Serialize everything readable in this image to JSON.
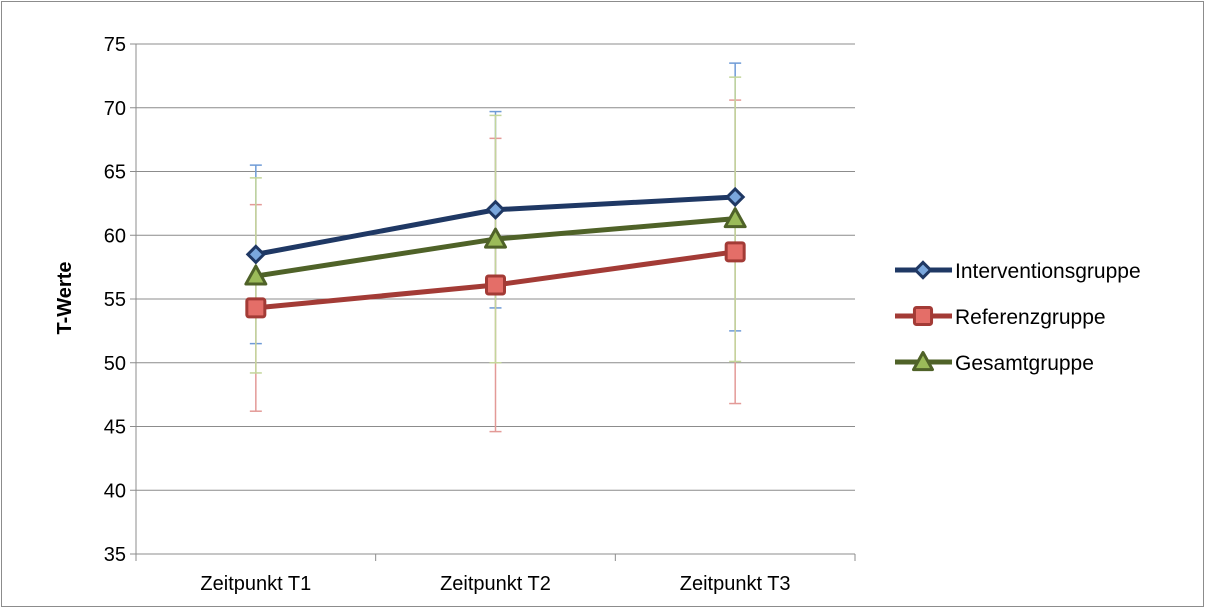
{
  "chart_data": {
    "type": "line",
    "title": "",
    "xlabel": "",
    "ylabel": "T-Werte",
    "categories": [
      "Zeitpunkt T1",
      "Zeitpunkt T2",
      "Zeitpunkt T3"
    ],
    "ylim": [
      35,
      75
    ],
    "yticks": [
      35,
      40,
      45,
      50,
      55,
      60,
      65,
      70,
      75
    ],
    "grid": true,
    "legend_position": "right",
    "error_bars": true,
    "series": [
      {
        "name": "Interventionsgruppe",
        "marker": "diamond",
        "color": "#1f3864",
        "error_color": "#6f9bd6",
        "values": [
          58.5,
          62.0,
          63.0
        ],
        "error_low": [
          51.5,
          54.3,
          52.5
        ],
        "error_high": [
          65.5,
          69.7,
          73.5
        ]
      },
      {
        "name": "Referenzgruppe",
        "marker": "square",
        "color": "#a33b36",
        "error_color": "#e39a97",
        "values": [
          54.3,
          56.1,
          58.7
        ],
        "error_low": [
          46.2,
          44.6,
          46.8
        ],
        "error_high": [
          62.4,
          67.6,
          70.6
        ]
      },
      {
        "name": "Gesamtgruppe",
        "marker": "triangle",
        "color": "#4f6228",
        "error_color": "#c3d69b",
        "values": [
          56.8,
          59.7,
          61.3
        ],
        "error_low": [
          49.2,
          50.0,
          50.1
        ],
        "error_high": [
          64.5,
          69.4,
          72.4
        ]
      }
    ]
  }
}
